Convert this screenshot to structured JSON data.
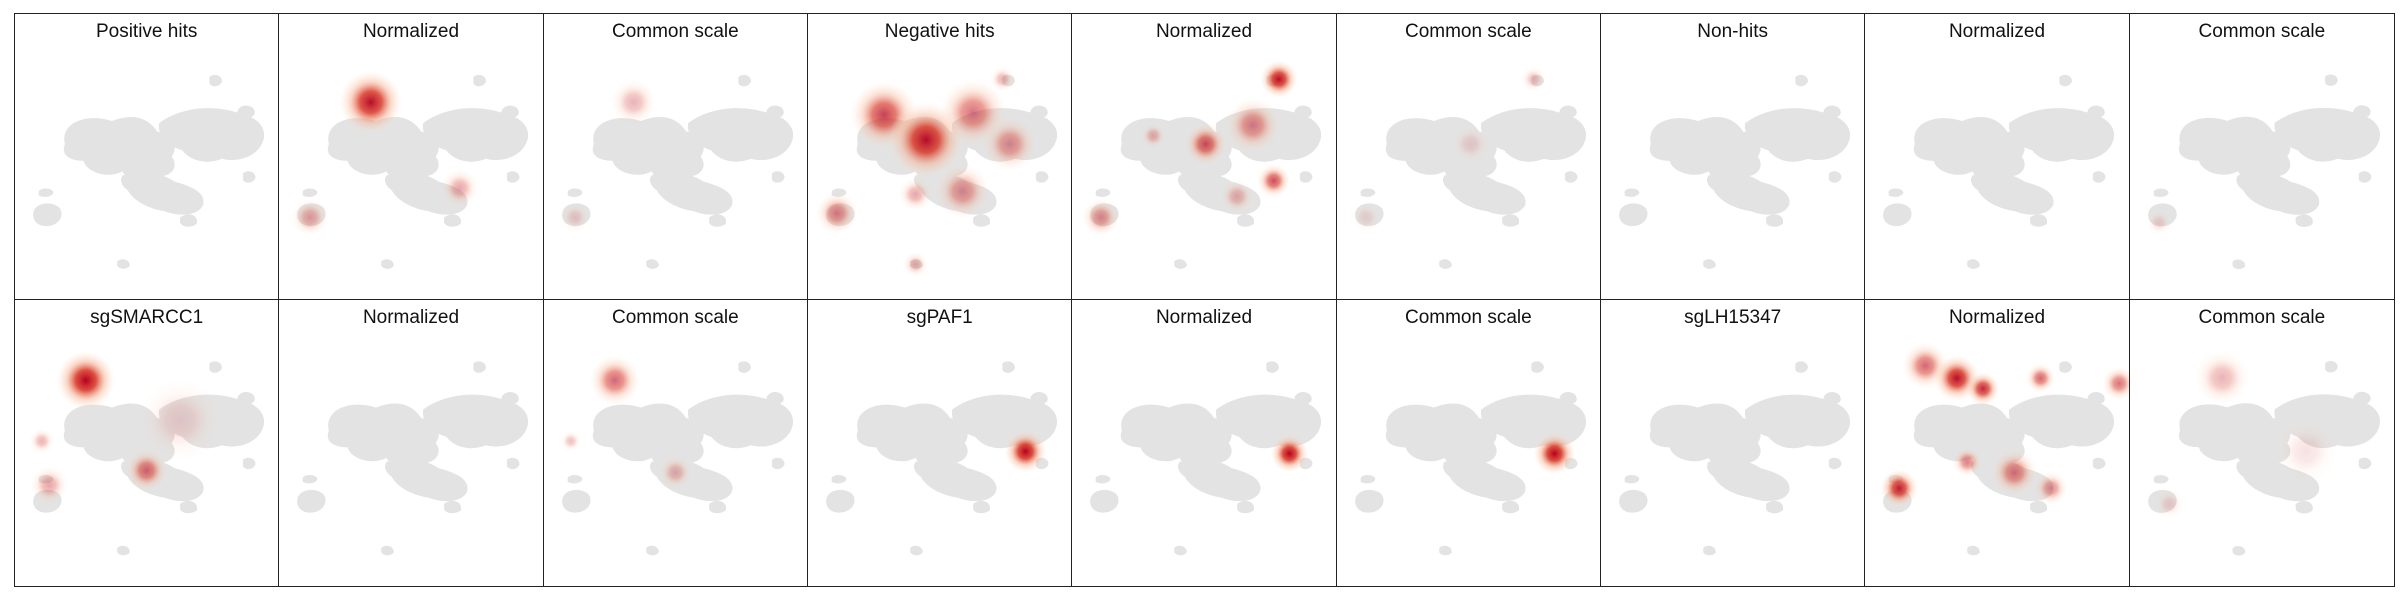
{
  "panels": [
    {
      "title": "Positive hits",
      "heat": []
    },
    {
      "title": "Normalized",
      "heat": [
        {
          "cx": 80,
          "cy": 30,
          "r": 30,
          "a": 0.95
        },
        {
          "cx": 165,
          "cy": 112,
          "r": 18,
          "a": 0.35
        },
        {
          "cx": 22,
          "cy": 140,
          "r": 18,
          "a": 0.35
        }
      ]
    },
    {
      "title": "Common scale",
      "heat": [
        {
          "cx": 78,
          "cy": 30,
          "r": 22,
          "a": 0.3
        },
        {
          "cx": 22,
          "cy": 140,
          "r": 14,
          "a": 0.18
        }
      ]
    },
    {
      "title": "Negative hits",
      "heat": [
        {
          "cx": 65,
          "cy": 42,
          "r": 32,
          "a": 0.75
        },
        {
          "cx": 105,
          "cy": 66,
          "r": 36,
          "a": 0.95
        },
        {
          "cx": 150,
          "cy": 40,
          "r": 32,
          "a": 0.55
        },
        {
          "cx": 185,
          "cy": 70,
          "r": 26,
          "a": 0.45
        },
        {
          "cx": 20,
          "cy": 136,
          "r": 20,
          "a": 0.5
        },
        {
          "cx": 140,
          "cy": 115,
          "r": 26,
          "a": 0.45
        },
        {
          "cx": 95,
          "cy": 118,
          "r": 16,
          "a": 0.35
        },
        {
          "cx": 178,
          "cy": 8,
          "r": 12,
          "a": 0.3
        },
        {
          "cx": 95,
          "cy": 185,
          "r": 12,
          "a": 0.3
        }
      ]
    },
    {
      "title": "Normalized",
      "heat": [
        {
          "cx": 190,
          "cy": 8,
          "r": 18,
          "a": 0.95
        },
        {
          "cx": 120,
          "cy": 70,
          "r": 20,
          "a": 0.7
        },
        {
          "cx": 185,
          "cy": 105,
          "r": 16,
          "a": 0.7
        },
        {
          "cx": 165,
          "cy": 52,
          "r": 26,
          "a": 0.5
        },
        {
          "cx": 20,
          "cy": 140,
          "r": 18,
          "a": 0.45
        },
        {
          "cx": 70,
          "cy": 62,
          "r": 12,
          "a": 0.3
        },
        {
          "cx": 150,
          "cy": 120,
          "r": 16,
          "a": 0.3
        }
      ]
    },
    {
      "title": "Common scale",
      "heat": [
        {
          "cx": 180,
          "cy": 8,
          "r": 12,
          "a": 0.25
        },
        {
          "cx": 120,
          "cy": 70,
          "r": 18,
          "a": 0.15
        },
        {
          "cx": 20,
          "cy": 140,
          "r": 14,
          "a": 0.12
        }
      ]
    },
    {
      "title": "Non-hits",
      "heat": []
    },
    {
      "title": "Normalized",
      "heat": []
    },
    {
      "title": "Common scale",
      "heat": [
        {
          "cx": 20,
          "cy": 145,
          "r": 12,
          "a": 0.15
        }
      ]
    },
    {
      "title": "sgSMARCC1",
      "heat": [
        {
          "cx": 60,
          "cy": 22,
          "r": 28,
          "a": 1.0
        },
        {
          "cx": 118,
          "cy": 108,
          "r": 20,
          "a": 0.6
        },
        {
          "cx": 25,
          "cy": 122,
          "r": 18,
          "a": 0.35
        },
        {
          "cx": 18,
          "cy": 80,
          "r": 12,
          "a": 0.3
        },
        {
          "cx": 150,
          "cy": 60,
          "r": 40,
          "a": 0.15
        }
      ]
    },
    {
      "title": "Normalized",
      "heat": []
    },
    {
      "title": "Common scale",
      "heat": [
        {
          "cx": 60,
          "cy": 22,
          "r": 24,
          "a": 0.6
        },
        {
          "cx": 118,
          "cy": 110,
          "r": 16,
          "a": 0.3
        },
        {
          "cx": 18,
          "cy": 80,
          "r": 10,
          "a": 0.25
        }
      ]
    },
    {
      "title": "sgPAF1",
      "heat": [
        {
          "cx": 200,
          "cy": 90,
          "r": 20,
          "a": 1.0
        }
      ]
    },
    {
      "title": "Normalized",
      "heat": [
        {
          "cx": 200,
          "cy": 92,
          "r": 18,
          "a": 1.0
        }
      ]
    },
    {
      "title": "Common scale",
      "heat": [
        {
          "cx": 200,
          "cy": 92,
          "r": 20,
          "a": 1.0
        }
      ]
    },
    {
      "title": "sgLH15347",
      "heat": []
    },
    {
      "title": "Normalized",
      "heat": [
        {
          "cx": 50,
          "cy": 8,
          "r": 22,
          "a": 0.6
        },
        {
          "cx": 80,
          "cy": 20,
          "r": 22,
          "a": 0.95
        },
        {
          "cx": 105,
          "cy": 30,
          "r": 16,
          "a": 0.85
        },
        {
          "cx": 160,
          "cy": 20,
          "r": 14,
          "a": 0.6
        },
        {
          "cx": 235,
          "cy": 25,
          "r": 16,
          "a": 0.55
        },
        {
          "cx": 25,
          "cy": 125,
          "r": 18,
          "a": 0.9
        },
        {
          "cx": 90,
          "cy": 100,
          "r": 14,
          "a": 0.5
        },
        {
          "cx": 135,
          "cy": 110,
          "r": 22,
          "a": 0.55
        },
        {
          "cx": 170,
          "cy": 125,
          "r": 16,
          "a": 0.45
        }
      ]
    },
    {
      "title": "Common scale",
      "heat": [
        {
          "cx": 80,
          "cy": 20,
          "r": 26,
          "a": 0.3
        },
        {
          "cx": 30,
          "cy": 140,
          "r": 14,
          "a": 0.15
        },
        {
          "cx": 160,
          "cy": 90,
          "r": 30,
          "a": 0.12
        }
      ]
    }
  ]
}
